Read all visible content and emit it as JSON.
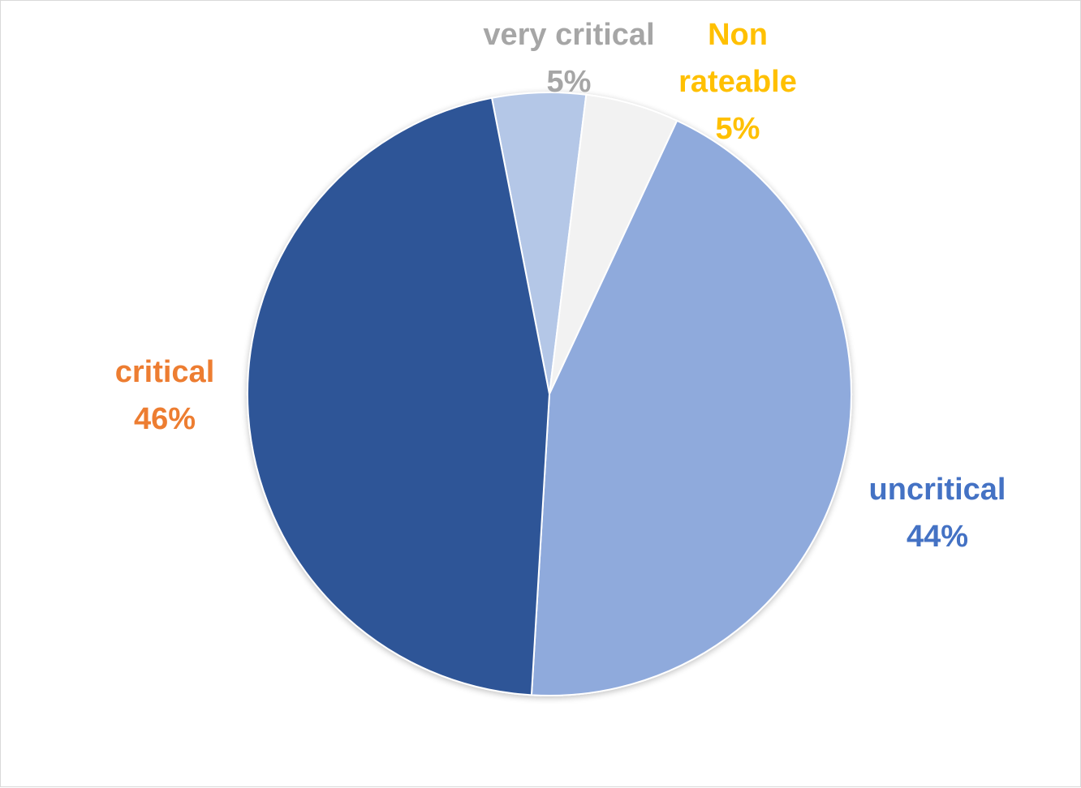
{
  "chart_data": {
    "type": "pie",
    "title": "",
    "slices": [
      {
        "name": "very critical",
        "value": 5,
        "percent_label": "5%",
        "fill": "#b4c7e7",
        "label_color": "#a6a6a6"
      },
      {
        "name": "Non rateable",
        "value": 5,
        "percent_label": "5%",
        "fill": "#f2f2f2",
        "label_color": "#ffc000"
      },
      {
        "name": "uncritical",
        "value": 44,
        "percent_label": "44%",
        "fill": "#8faadc",
        "label_color": "#4472c4"
      },
      {
        "name": "critical",
        "value": 46,
        "percent_label": "46%",
        "fill": "#2f5597",
        "label_color": "#ed7d31"
      }
    ],
    "start_angle_deg": -11,
    "direction": "clockwise",
    "legend": "none",
    "data_labels": "outside-category-and-percent"
  }
}
